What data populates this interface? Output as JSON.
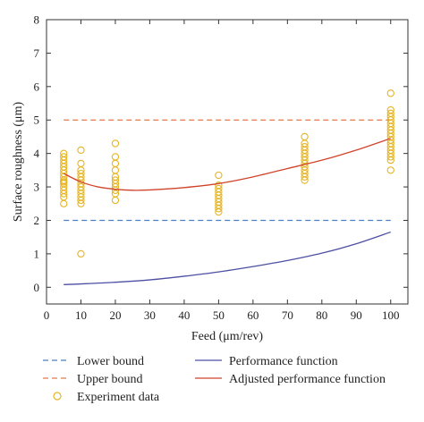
{
  "chart_data": {
    "type": "scatter",
    "xlabel": "Feed (μm/rev)",
    "ylabel": "Surface roughness (μm)",
    "xlim": [
      0,
      105
    ],
    "ylim": [
      -0.5,
      8
    ],
    "xticks": [
      0,
      10,
      20,
      30,
      40,
      50,
      60,
      70,
      80,
      90,
      100
    ],
    "yticks": [
      0,
      1,
      2,
      3,
      4,
      5,
      6,
      7,
      8
    ],
    "grid": false,
    "legend_position": "bottom",
    "series": [
      {
        "name": "Lower bound",
        "kind": "line",
        "style": "dashed",
        "color": "#4a7fc1",
        "x": [
          5,
          100
        ],
        "y": [
          2.0,
          2.0
        ]
      },
      {
        "name": "Upper bound",
        "kind": "line",
        "style": "dashed",
        "color": "#e07a4a",
        "x": [
          5,
          100
        ],
        "y": [
          5.0,
          5.0
        ]
      },
      {
        "name": "Experiment data",
        "kind": "scatter",
        "marker": "circle-open",
        "color": "#e6b422",
        "points": [
          [
            5,
            2.5
          ],
          [
            5,
            2.7
          ],
          [
            5,
            2.8
          ],
          [
            5,
            2.9
          ],
          [
            5,
            3.0
          ],
          [
            5,
            3.1
          ],
          [
            5,
            3.15
          ],
          [
            5,
            3.2
          ],
          [
            5,
            3.3
          ],
          [
            5,
            3.4
          ],
          [
            5,
            3.5
          ],
          [
            5,
            3.6
          ],
          [
            5,
            3.7
          ],
          [
            5,
            3.8
          ],
          [
            5,
            3.9
          ],
          [
            5,
            4.0
          ],
          [
            10,
            1.0
          ],
          [
            10,
            2.5
          ],
          [
            10,
            2.6
          ],
          [
            10,
            2.7
          ],
          [
            10,
            2.8
          ],
          [
            10,
            2.9
          ],
          [
            10,
            3.0
          ],
          [
            10,
            3.1
          ],
          [
            10,
            3.2
          ],
          [
            10,
            3.3
          ],
          [
            10,
            3.4
          ],
          [
            10,
            3.5
          ],
          [
            10,
            3.7
          ],
          [
            10,
            4.1
          ],
          [
            20,
            2.6
          ],
          [
            20,
            2.8
          ],
          [
            20,
            2.9
          ],
          [
            20,
            3.0
          ],
          [
            20,
            3.1
          ],
          [
            20,
            3.2
          ],
          [
            20,
            3.3
          ],
          [
            20,
            3.5
          ],
          [
            20,
            3.7
          ],
          [
            20,
            3.9
          ],
          [
            20,
            4.3
          ],
          [
            50,
            2.25
          ],
          [
            50,
            2.35
          ],
          [
            50,
            2.45
          ],
          [
            50,
            2.55
          ],
          [
            50,
            2.65
          ],
          [
            50,
            2.75
          ],
          [
            50,
            2.85
          ],
          [
            50,
            2.95
          ],
          [
            50,
            3.05
          ],
          [
            50,
            3.35
          ],
          [
            75,
            3.2
          ],
          [
            75,
            3.3
          ],
          [
            75,
            3.4
          ],
          [
            75,
            3.5
          ],
          [
            75,
            3.6
          ],
          [
            75,
            3.7
          ],
          [
            75,
            3.8
          ],
          [
            75,
            3.9
          ],
          [
            75,
            4.0
          ],
          [
            75,
            4.1
          ],
          [
            75,
            4.2
          ],
          [
            75,
            4.3
          ],
          [
            75,
            4.5
          ],
          [
            100,
            3.5
          ],
          [
            100,
            3.8
          ],
          [
            100,
            3.9
          ],
          [
            100,
            4.0
          ],
          [
            100,
            4.1
          ],
          [
            100,
            4.2
          ],
          [
            100,
            4.3
          ],
          [
            100,
            4.4
          ],
          [
            100,
            4.5
          ],
          [
            100,
            4.6
          ],
          [
            100,
            4.7
          ],
          [
            100,
            4.8
          ],
          [
            100,
            4.9
          ],
          [
            100,
            5.0
          ],
          [
            100,
            5.1
          ],
          [
            100,
            5.2
          ],
          [
            100,
            5.3
          ],
          [
            100,
            5.8
          ]
        ]
      },
      {
        "name": "Performance function",
        "kind": "line",
        "style": "solid",
        "color": "#4d4fa3",
        "x": [
          5,
          10,
          20,
          30,
          40,
          50,
          60,
          70,
          80,
          90,
          100
        ],
        "y": [
          0.08,
          0.1,
          0.15,
          0.22,
          0.33,
          0.46,
          0.62,
          0.8,
          1.02,
          1.3,
          1.65
        ]
      },
      {
        "name": "Adjusted performance function",
        "kind": "line",
        "style": "solid",
        "color": "#d0442a",
        "x": [
          5,
          10,
          15,
          20,
          25,
          30,
          40,
          50,
          60,
          70,
          80,
          90,
          100
        ],
        "y": [
          3.4,
          3.15,
          3.0,
          2.93,
          2.9,
          2.91,
          2.98,
          3.1,
          3.3,
          3.55,
          3.8,
          4.1,
          4.45
        ]
      }
    ]
  }
}
